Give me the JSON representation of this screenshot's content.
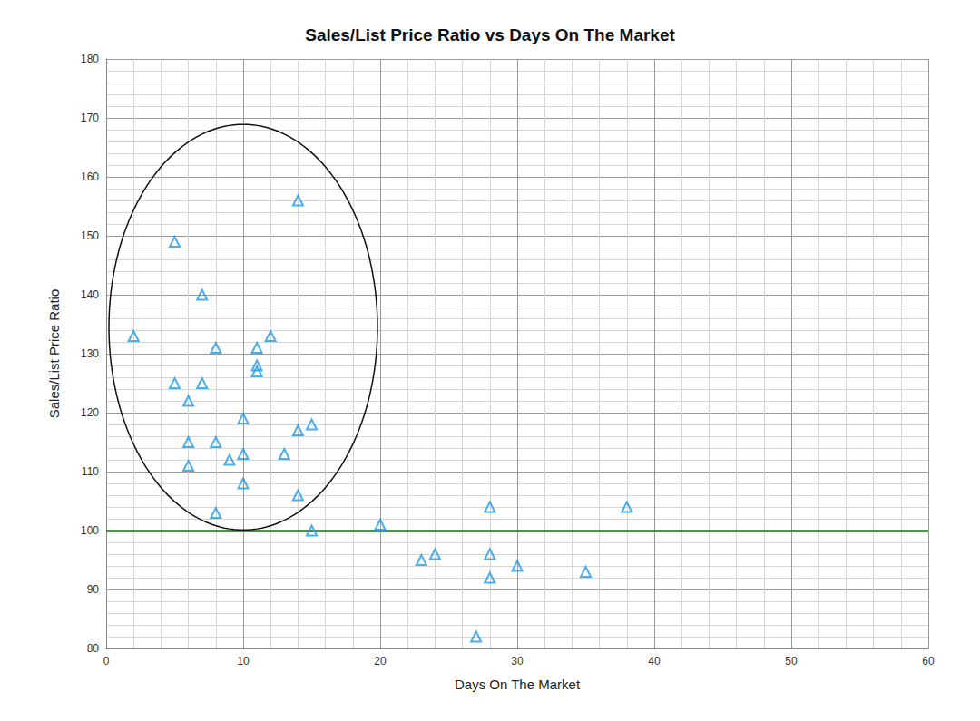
{
  "chart_data": {
    "type": "scatter",
    "title": "Sales/List Price Ratio vs Days On The Market",
    "x_label": "Days On The Market",
    "y_label": "Sales/List Price Ratio",
    "x": [
      2,
      5,
      5,
      6,
      6,
      6,
      7,
      7,
      8,
      8,
      8,
      9,
      10,
      10,
      10,
      11,
      11,
      11,
      12,
      13,
      14,
      14,
      14,
      15,
      15,
      20,
      23,
      24,
      27,
      28,
      28,
      28,
      30,
      35,
      38
    ],
    "values": [
      133,
      149,
      125,
      122,
      115,
      111,
      140,
      125,
      131,
      115,
      103,
      112,
      119,
      113,
      108,
      131,
      128,
      127,
      133,
      113,
      156,
      117,
      106,
      118,
      100,
      101,
      95,
      96,
      82,
      104,
      96,
      92,
      94,
      93,
      104
    ],
    "color": "#1f9ae8",
    "marker": "triangle",
    "xlim": [
      0,
      60
    ],
    "xticks": [
      0,
      10,
      20,
      30,
      40,
      50,
      60
    ],
    "ylim": [
      80,
      180
    ],
    "yticks": [
      80,
      90,
      100,
      110,
      120,
      130,
      140,
      150,
      160,
      170,
      180
    ],
    "grid": true,
    "reference_line": {
      "y": 100,
      "color": "#1e6b1e"
    },
    "annotations": [
      {
        "shape": "ellipse",
        "center": [
          10,
          134.5
        ],
        "radius": [
          9.8,
          34.4
        ],
        "color": "#111111"
      }
    ]
  }
}
